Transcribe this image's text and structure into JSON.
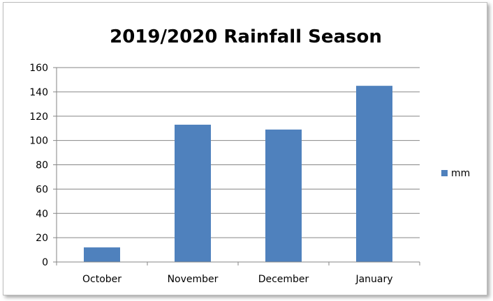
{
  "chart_data": {
    "type": "bar",
    "title": "2019/2020 Rainfall Season",
    "xlabel": "",
    "ylabel": "",
    "categories": [
      "October",
      "November",
      "December",
      "January"
    ],
    "series": [
      {
        "name": "mm",
        "values": [
          12,
          113,
          109,
          145
        ],
        "color": "#4f81bd"
      }
    ],
    "ylim": [
      0,
      160
    ],
    "yticks": [
      "0",
      "20",
      "40",
      "60",
      "80",
      "100",
      "120",
      "140",
      "160"
    ],
    "grid": true,
    "legend_position": "right",
    "colors": {
      "bar": "#4f81bd",
      "grid": "#868686",
      "axis": "#868686"
    }
  }
}
